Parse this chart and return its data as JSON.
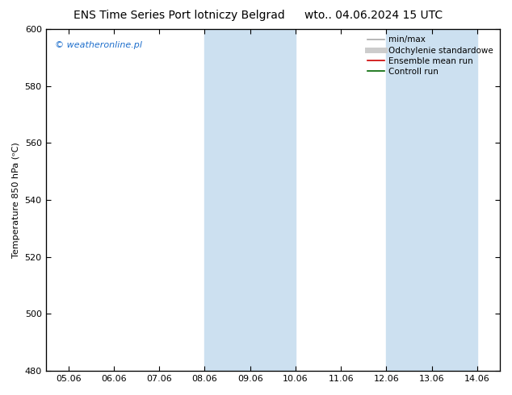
{
  "title_left": "ENS Time Series Port lotniczy Belgrad",
  "title_right": "wto.. 04.06.2024 15 UTC",
  "ylabel": "Temperature 850 hPa (ᵒC)",
  "ylim": [
    480,
    600
  ],
  "yticks": [
    480,
    500,
    520,
    540,
    560,
    580,
    600
  ],
  "xtick_labels": [
    "05.06",
    "06.06",
    "07.06",
    "08.06",
    "09.06",
    "10.06",
    "11.06",
    "12.06",
    "13.06",
    "14.06"
  ],
  "xtick_positions": [
    0,
    1,
    2,
    3,
    4,
    5,
    6,
    7,
    8,
    9
  ],
  "xlim": [
    -0.5,
    9.5
  ],
  "shade_bands": [
    {
      "x_start": 3,
      "x_end": 5,
      "color": "#cce0f0"
    },
    {
      "x_start": 7,
      "x_end": 9,
      "color": "#cce0f0"
    }
  ],
  "watermark": "© weatheronline.pl",
  "watermark_color": "#1e6fcc",
  "legend_entries": [
    {
      "label": "min/max",
      "color": "#aaaaaa",
      "lw": 1.2,
      "style": "line"
    },
    {
      "label": "Odchylenie standardowe",
      "color": "#cccccc",
      "lw": 5,
      "style": "line"
    },
    {
      "label": "Ensemble mean run",
      "color": "#cc0000",
      "lw": 1.2,
      "style": "line"
    },
    {
      "label": "Controll run",
      "color": "#006600",
      "lw": 1.2,
      "style": "line"
    }
  ],
  "bg_color": "#ffffff",
  "plot_bg_color": "#ffffff",
  "title_fontsize": 10,
  "axis_label_fontsize": 8,
  "tick_fontsize": 8,
  "legend_fontsize": 7.5,
  "watermark_fontsize": 8
}
